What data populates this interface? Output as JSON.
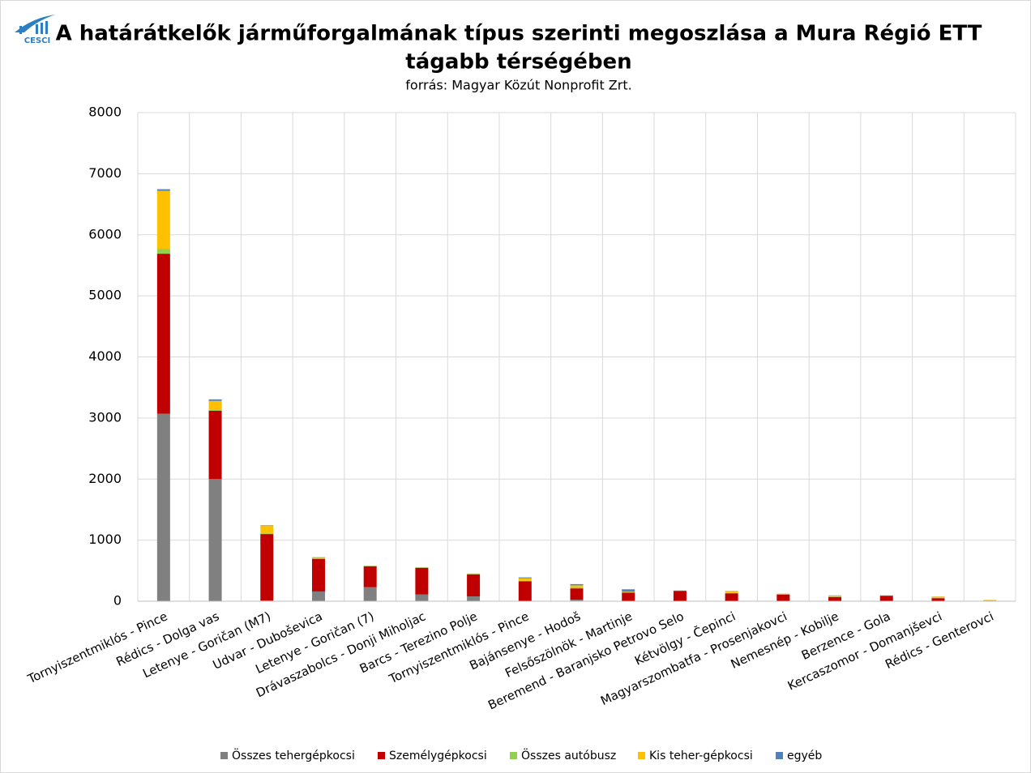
{
  "logo": "CESCI",
  "chart_data": {
    "type": "bar",
    "stacked": true,
    "title": "A határátkelők járműforgalmának típus szerinti megoszlása a Mura Régió ETT",
    "title_line2": "tágabb térségében",
    "subtitle": "forrás: Magyar Közút Nonprofit Zrt.",
    "categories": [
      "Tornyiszentmiklós - Pince",
      "Rédics - Dolga vas",
      "Letenye - Goričan (M7)",
      "Udvar - Duboševica",
      "Letenye - Goričan (7)",
      "Drávaszabolcs - Donji Miholjac",
      "Barcs - Terezino Polje",
      "Tornyiszentmiklós - Pince",
      "Bajánsenye - Hodoš",
      "Felsőszölnök - Martinje",
      "Beremend - Baranjsko Petrovo Selo",
      "Kétvölgy - Čepinci",
      "Magyarszombatfa - Prosenjakovci",
      "Nemesnép - Kobilje",
      "Berzence - Gola",
      "Kercaszomor - Domanjševci",
      "Rédics - Genterovci"
    ],
    "series": [
      {
        "name": "Összes tehergépkocsi",
        "color": "#808080",
        "values": [
          3070,
          2000,
          10,
          160,
          230,
          110,
          80,
          5,
          25,
          5,
          5,
          5,
          5,
          5,
          5,
          5,
          2
        ]
      },
      {
        "name": "Személygépkocsi",
        "color": "#c00000",
        "values": [
          2620,
          1120,
          1090,
          530,
          340,
          435,
          360,
          320,
          185,
          135,
          165,
          125,
          105,
          65,
          85,
          45,
          3
        ]
      },
      {
        "name": "Összes autóbusz",
        "color": "#92d050",
        "values": [
          80,
          20,
          10,
          20,
          5,
          5,
          5,
          10,
          20,
          5,
          2,
          5,
          3,
          5,
          2,
          5,
          8
        ]
      },
      {
        "name": "Kis teher-gépkocsi",
        "color": "#ffc000",
        "values": [
          950,
          140,
          130,
          5,
          5,
          5,
          5,
          40,
          30,
          10,
          3,
          30,
          10,
          20,
          3,
          20,
          7
        ]
      },
      {
        "name": "egyéb",
        "color": "#4f81bd",
        "values": [
          26,
          25,
          5,
          5,
          3,
          3,
          3,
          15,
          20,
          40,
          2,
          3,
          2,
          2,
          2,
          2,
          1
        ]
      }
    ],
    "ylim": [
      0,
      8000
    ],
    "yticks": [
      0,
      1000,
      2000,
      3000,
      4000,
      5000,
      6000,
      7000,
      8000
    ],
    "grid": true,
    "legend": "bottom"
  }
}
